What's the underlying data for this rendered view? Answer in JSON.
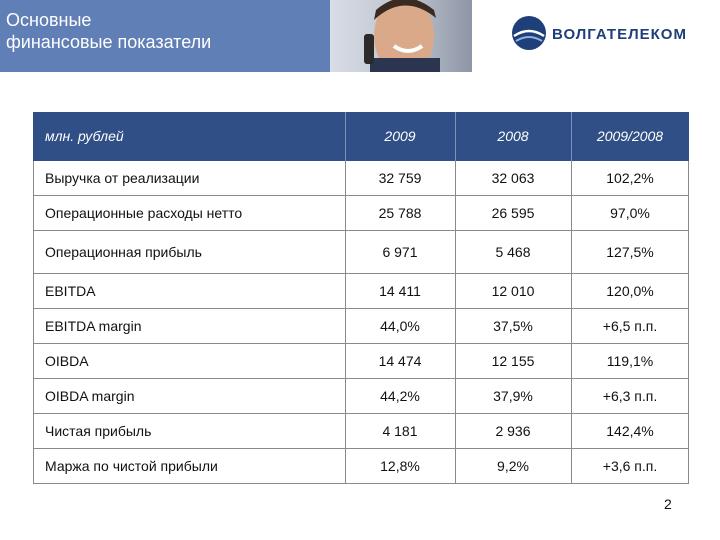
{
  "header": {
    "title": "Основные\nфинансовые показатели",
    "logo_text": "ВОЛГАТЕЛЕКОМ",
    "logo_icon": "volgatelecom-logo-icon",
    "photo": "man-on-phone-photo"
  },
  "table": {
    "columns": [
      "млн. рублей",
      "2009",
      "2008",
      "2009/2008"
    ],
    "rows": [
      {
        "label": "Выручка от реализации",
        "v2009": "32 759",
        "v2008": "32 063",
        "ratio": "102,2%"
      },
      {
        "label": "Операционные расходы нетто",
        "v2009": "25 788",
        "v2008": "26 595",
        "ratio": "97,0%"
      },
      {
        "label": "Операционная прибыль",
        "v2009": "6 971",
        "v2008": "5 468",
        "ratio": "127,5%"
      },
      {
        "label": "EBITDA",
        "v2009": "14 411",
        "v2008": "12 010",
        "ratio": "120,0%"
      },
      {
        "label": "EBITDA margin",
        "v2009": "44,0%",
        "v2008": "37,5%",
        "ratio": "+6,5 п.п."
      },
      {
        "label": "OIBDA",
        "v2009": "14 474",
        "v2008": "12 155",
        "ratio": "119,1%"
      },
      {
        "label": "OIBDA margin",
        "v2009": "44,2%",
        "v2008": "37,9%",
        "ratio": "+6,3 п.п."
      },
      {
        "label": "Чистая прибыль",
        "v2009": "4 181",
        "v2008": "2 936",
        "ratio": "142,4%"
      },
      {
        "label": "Маржа по чистой прибыли",
        "v2009": "12,8%",
        "v2008": "9,2%",
        "ratio": "+3,6 п.п."
      }
    ]
  },
  "page_number": "2",
  "colors": {
    "banner_blue": "#5f7fb6",
    "header_blue": "#2f4f86",
    "logo_blue": "#1e3f7a"
  }
}
